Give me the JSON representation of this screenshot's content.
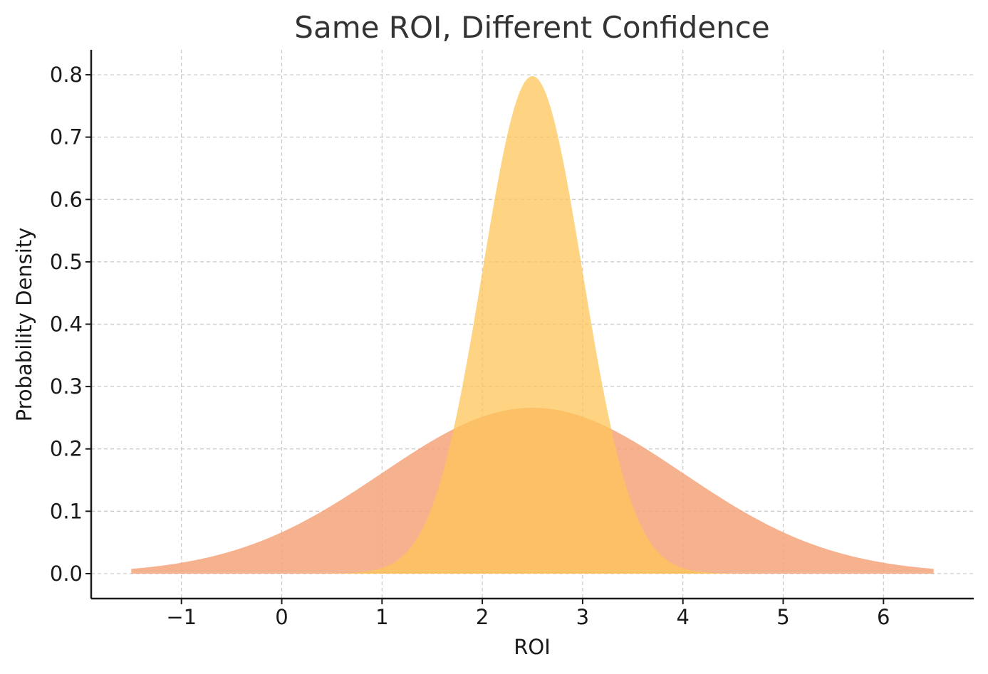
{
  "chart_data": {
    "type": "area",
    "title": "Same ROI, Different Confidence",
    "xlabel": "ROI",
    "ylabel": "Probability Density",
    "xlim": [
      -1.9,
      6.9
    ],
    "ylim": [
      -0.04,
      0.84
    ],
    "x_ticks": [
      -1,
      0,
      1,
      2,
      3,
      4,
      5,
      6
    ],
    "x_tick_labels": [
      "−1",
      "0",
      "1",
      "2",
      "3",
      "4",
      "5",
      "6"
    ],
    "y_ticks": [
      0.0,
      0.1,
      0.2,
      0.3,
      0.4,
      0.5,
      0.6,
      0.7,
      0.8
    ],
    "y_tick_labels": [
      "0.0",
      "0.1",
      "0.2",
      "0.3",
      "0.4",
      "0.5",
      "0.6",
      "0.7",
      "0.8"
    ],
    "grid": true,
    "legend": "none",
    "series": [
      {
        "distribution": "normal",
        "mean": 2.5,
        "std": 1.5,
        "x_range": [
          -1.5,
          6.5
        ],
        "peak_density": 0.266,
        "color": "#f4a37a",
        "opacity": 0.85
      },
      {
        "distribution": "normal",
        "mean": 2.5,
        "std": 0.5,
        "x_range": [
          -1.5,
          6.5
        ],
        "peak_density": 0.798,
        "color": "#fdc55a",
        "opacity": 0.75
      }
    ]
  }
}
